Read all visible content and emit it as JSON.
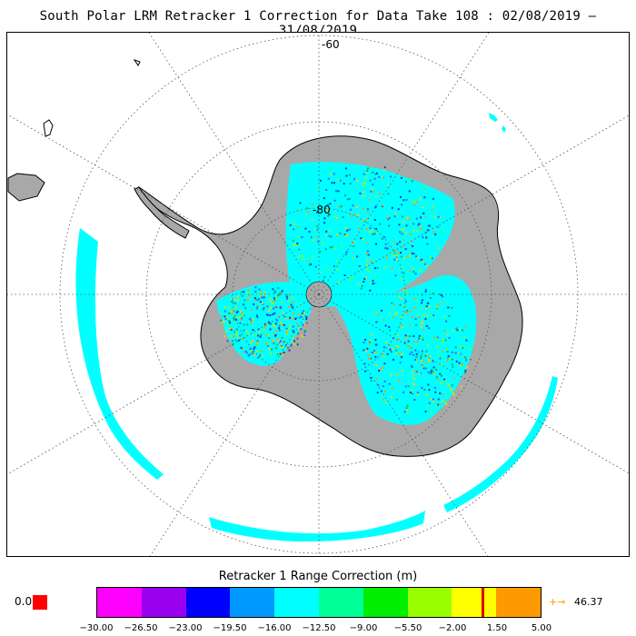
{
  "header": {
    "title": "South Polar LRM Retracker 1 Correction for Data Take 108 : 02/08/2019 – 31/08/2019"
  },
  "map": {
    "lat_labels": [
      "-60",
      "-80"
    ],
    "colors": {
      "land": "#a8a8a8",
      "ocean": "#ffffff",
      "coast": "#000000",
      "graticule": "#555555",
      "track": "#00ffff"
    }
  },
  "legend": {
    "title": "Retracker 1 Range Correction (m)",
    "no_data_label": "0.0",
    "no_data_color": "#ff0000",
    "ticks": [
      "−30.00",
      "−26.50",
      "−23.00",
      "−19.50",
      "−16.00",
      "−12.50",
      "−9.00",
      "−5.50",
      "−2.00",
      "1.50",
      "5.00"
    ],
    "colors": [
      "#ff00ff",
      "#9900ee",
      "#0000ff",
      "#0099ff",
      "#00ffff",
      "#00ff99",
      "#00ee00",
      "#99ff00",
      "#ffff00",
      "#ff9900"
    ],
    "marker_value": 0.35,
    "marker_color": "#dd0000",
    "range": [
      -30.0,
      5.0
    ],
    "overflow_arrow": "+→",
    "overflow_value": "46.37",
    "overflow_color": "#ff9900"
  }
}
